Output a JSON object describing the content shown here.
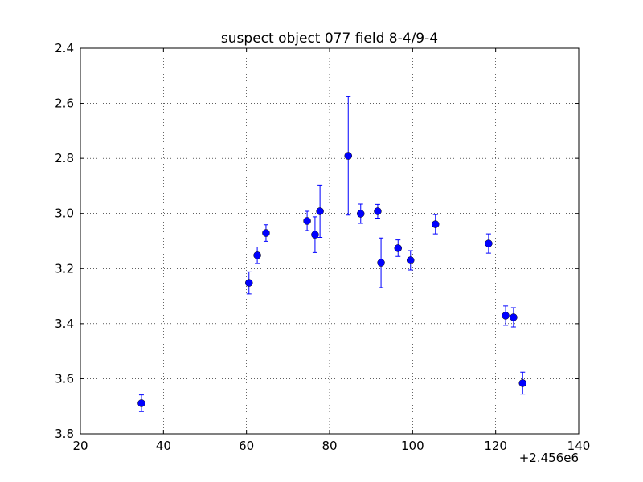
{
  "chart_data": {
    "type": "errorbar",
    "title": "suspect object 077 field 8-4/9-4",
    "x_offset_label": "+2.456e6",
    "x": [
      34.7,
      60.6,
      62.6,
      64.7,
      74.6,
      76.5,
      77.7,
      84.5,
      87.5,
      91.6,
      92.4,
      96.5,
      99.5,
      105.5,
      118.3,
      122.4,
      124.3,
      126.5
    ],
    "values": [
      3.689,
      3.252,
      3.152,
      3.071,
      3.027,
      3.077,
      2.992,
      2.791,
      3.001,
      2.992,
      3.179,
      3.126,
      3.17,
      3.039,
      3.109,
      3.371,
      3.377,
      3.616
    ],
    "errors": [
      0.03,
      0.04,
      0.03,
      0.03,
      0.035,
      0.065,
      0.095,
      0.215,
      0.035,
      0.025,
      0.09,
      0.03,
      0.035,
      0.035,
      0.035,
      0.035,
      0.035,
      0.04
    ],
    "color": "#0000ff",
    "xlim": [
      20,
      140
    ],
    "xticks": [
      20,
      40,
      60,
      80,
      100,
      120,
      140
    ],
    "ylim": [
      2.4,
      3.8
    ],
    "y_inverted": true,
    "yticks": [
      2.4,
      2.6,
      2.8,
      {
        "value": 3,
        "label": "3.0"
      },
      3.2,
      3.4,
      3.6,
      3.8
    ],
    "grid": true
  }
}
